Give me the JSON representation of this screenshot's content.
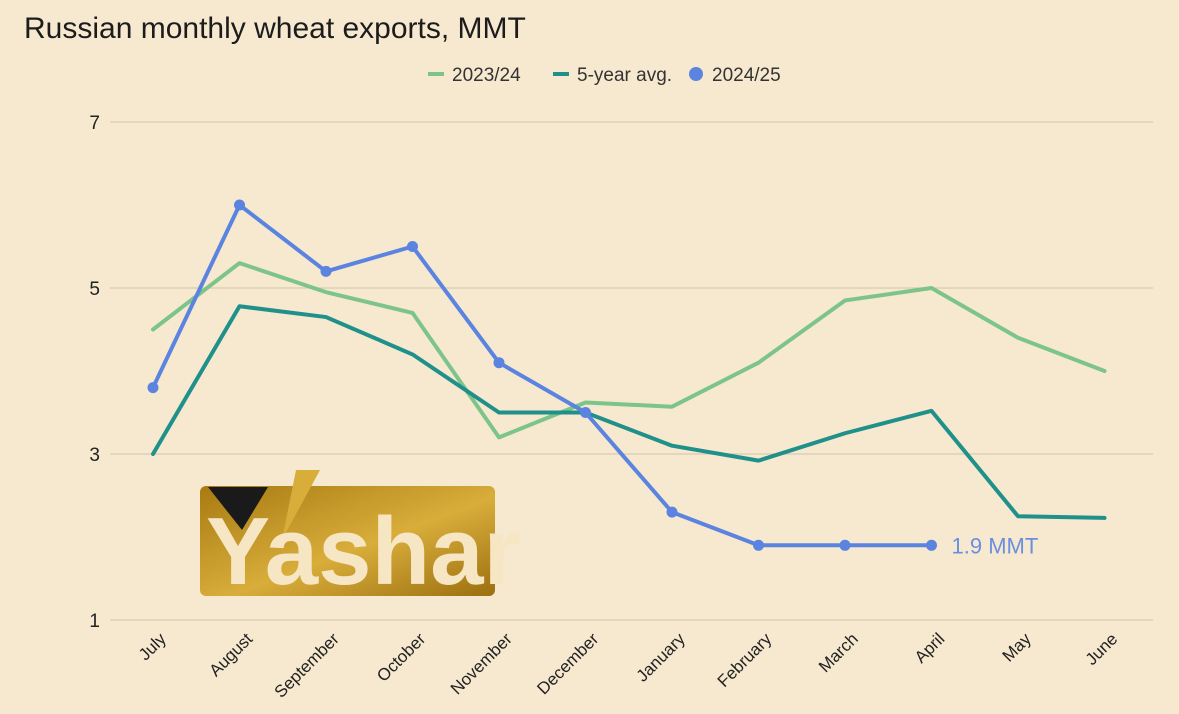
{
  "chart_data": {
    "type": "line",
    "title": "Russian monthly wheat exports, MMT",
    "categories": [
      "July",
      "August",
      "September",
      "October",
      "November",
      "December",
      "January",
      "February",
      "March",
      "April",
      "May",
      "June"
    ],
    "y_ticks": [
      "1",
      "3",
      "5",
      "7"
    ],
    "ylim": [
      1,
      7
    ],
    "grid": true,
    "legend_position": "top-center",
    "series": [
      {
        "name": "2023/24",
        "color": "#7dc48b",
        "marker": false,
        "values": [
          4.5,
          5.3,
          4.95,
          4.7,
          3.2,
          3.62,
          3.57,
          4.1,
          4.85,
          5.0,
          4.4,
          4.0
        ]
      },
      {
        "name": "5-year avg.",
        "color": "#20908a",
        "marker": false,
        "values": [
          3.0,
          4.78,
          4.65,
          4.2,
          3.5,
          3.5,
          3.1,
          2.92,
          3.25,
          3.52,
          2.25,
          2.23
        ]
      },
      {
        "name": "2024/25",
        "color": "#5b84e0",
        "marker": true,
        "values": [
          3.8,
          6.0,
          5.2,
          5.5,
          4.1,
          3.5,
          2.3,
          1.9,
          1.9,
          1.9,
          null,
          null
        ]
      }
    ],
    "annotations": [
      {
        "text": "1.9 MMT",
        "series": "2024/25",
        "category": "April"
      }
    ]
  },
  "logo": {
    "text": "Yashar",
    "colors": {
      "gold": "#c4961f",
      "dark": "#1a1a1a",
      "cream": "#f6e6c4"
    }
  }
}
